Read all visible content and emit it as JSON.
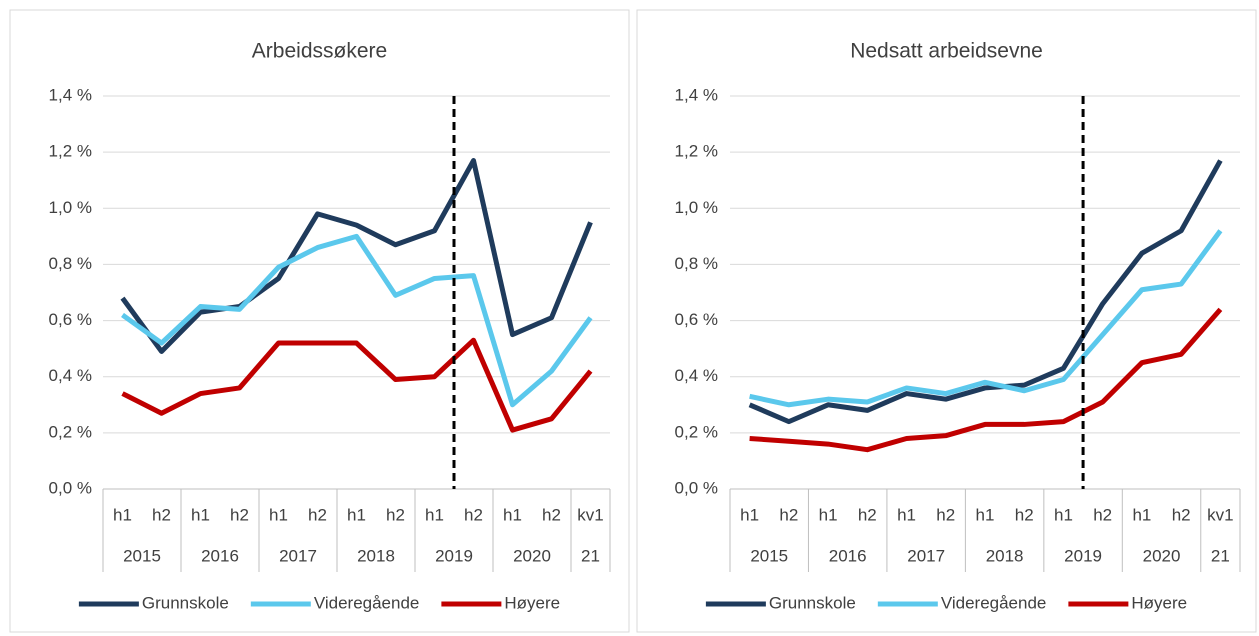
{
  "chart_data": [
    {
      "type": "line",
      "title": "Arbeidssøkere",
      "categories": [
        "h1",
        "h2",
        "h1",
        "h2",
        "h1",
        "h2",
        "h1",
        "h2",
        "h1",
        "h2",
        "h1",
        "h2",
        "kv1"
      ],
      "category_groups": [
        {
          "label": "2015",
          "count": 2
        },
        {
          "label": "2016",
          "count": 2
        },
        {
          "label": "2017",
          "count": 2
        },
        {
          "label": "2018",
          "count": 2
        },
        {
          "label": "2019",
          "count": 2
        },
        {
          "label": "2020",
          "count": 2
        },
        {
          "label": "21",
          "count": 1
        }
      ],
      "series": [
        {
          "name": "Grunnskole",
          "color": "#1f3b5c",
          "values": [
            0.68,
            0.49,
            0.63,
            0.65,
            0.75,
            0.98,
            0.94,
            0.87,
            0.92,
            1.17,
            0.55,
            0.61,
            0.95
          ]
        },
        {
          "name": "Videregående",
          "color": "#5bc8ec",
          "values": [
            0.62,
            0.52,
            0.65,
            0.64,
            0.79,
            0.86,
            0.9,
            0.69,
            0.75,
            0.76,
            0.3,
            0.42,
            0.61
          ]
        },
        {
          "name": "Høyere",
          "color": "#c00000",
          "values": [
            0.34,
            0.27,
            0.34,
            0.36,
            0.52,
            0.52,
            0.52,
            0.39,
            0.4,
            0.53,
            0.21,
            0.25,
            0.42
          ]
        }
      ],
      "ylim": [
        0,
        1.4
      ],
      "yticks": [
        {
          "value": 0,
          "label": "0,0 %"
        },
        {
          "value": 0.2,
          "label": "0,2 %"
        },
        {
          "value": 0.4,
          "label": "0,4 %"
        },
        {
          "value": 0.6,
          "label": "0,6 %"
        },
        {
          "value": 0.8,
          "label": "0,8 %"
        },
        {
          "value": 1.0,
          "label": "1,0 %"
        },
        {
          "value": 1.2,
          "label": "1,2 %"
        },
        {
          "value": 1.4,
          "label": "1,4 %"
        }
      ],
      "grid": true,
      "legend": "bottom",
      "reference_line_x": 8.5
    },
    {
      "type": "line",
      "title": "Nedsatt arbeidsevne",
      "categories": [
        "h1",
        "h2",
        "h1",
        "h2",
        "h1",
        "h2",
        "h1",
        "h2",
        "h1",
        "h2",
        "h1",
        "h2",
        "kv1"
      ],
      "category_groups": [
        {
          "label": "2015",
          "count": 2
        },
        {
          "label": "2016",
          "count": 2
        },
        {
          "label": "2017",
          "count": 2
        },
        {
          "label": "2018",
          "count": 2
        },
        {
          "label": "2019",
          "count": 2
        },
        {
          "label": "2020",
          "count": 2
        },
        {
          "label": "21",
          "count": 1
        }
      ],
      "series": [
        {
          "name": "Grunnskole",
          "color": "#1f3b5c",
          "values": [
            0.3,
            0.24,
            0.3,
            0.28,
            0.34,
            0.32,
            0.36,
            0.37,
            0.43,
            0.66,
            0.84,
            0.92,
            1.17
          ]
        },
        {
          "name": "Videregående",
          "color": "#5bc8ec",
          "values": [
            0.33,
            0.3,
            0.32,
            0.31,
            0.36,
            0.34,
            0.38,
            0.35,
            0.39,
            0.55,
            0.71,
            0.73,
            0.92
          ]
        },
        {
          "name": "Høyere",
          "color": "#c00000",
          "values": [
            0.18,
            0.17,
            0.16,
            0.14,
            0.18,
            0.19,
            0.23,
            0.23,
            0.24,
            0.31,
            0.45,
            0.48,
            0.64
          ]
        }
      ],
      "ylim": [
        0,
        1.4
      ],
      "yticks": [
        {
          "value": 0,
          "label": "0,0 %"
        },
        {
          "value": 0.2,
          "label": "0,2 %"
        },
        {
          "value": 0.4,
          "label": "0,4 %"
        },
        {
          "value": 0.6,
          "label": "0,6 %"
        },
        {
          "value": 0.8,
          "label": "0,8 %"
        },
        {
          "value": 1.0,
          "label": "1,0 %"
        },
        {
          "value": 1.2,
          "label": "1,2 %"
        },
        {
          "value": 1.4,
          "label": "1,4 %"
        }
      ],
      "grid": true,
      "legend": "bottom",
      "reference_line_x": 8.5
    }
  ]
}
